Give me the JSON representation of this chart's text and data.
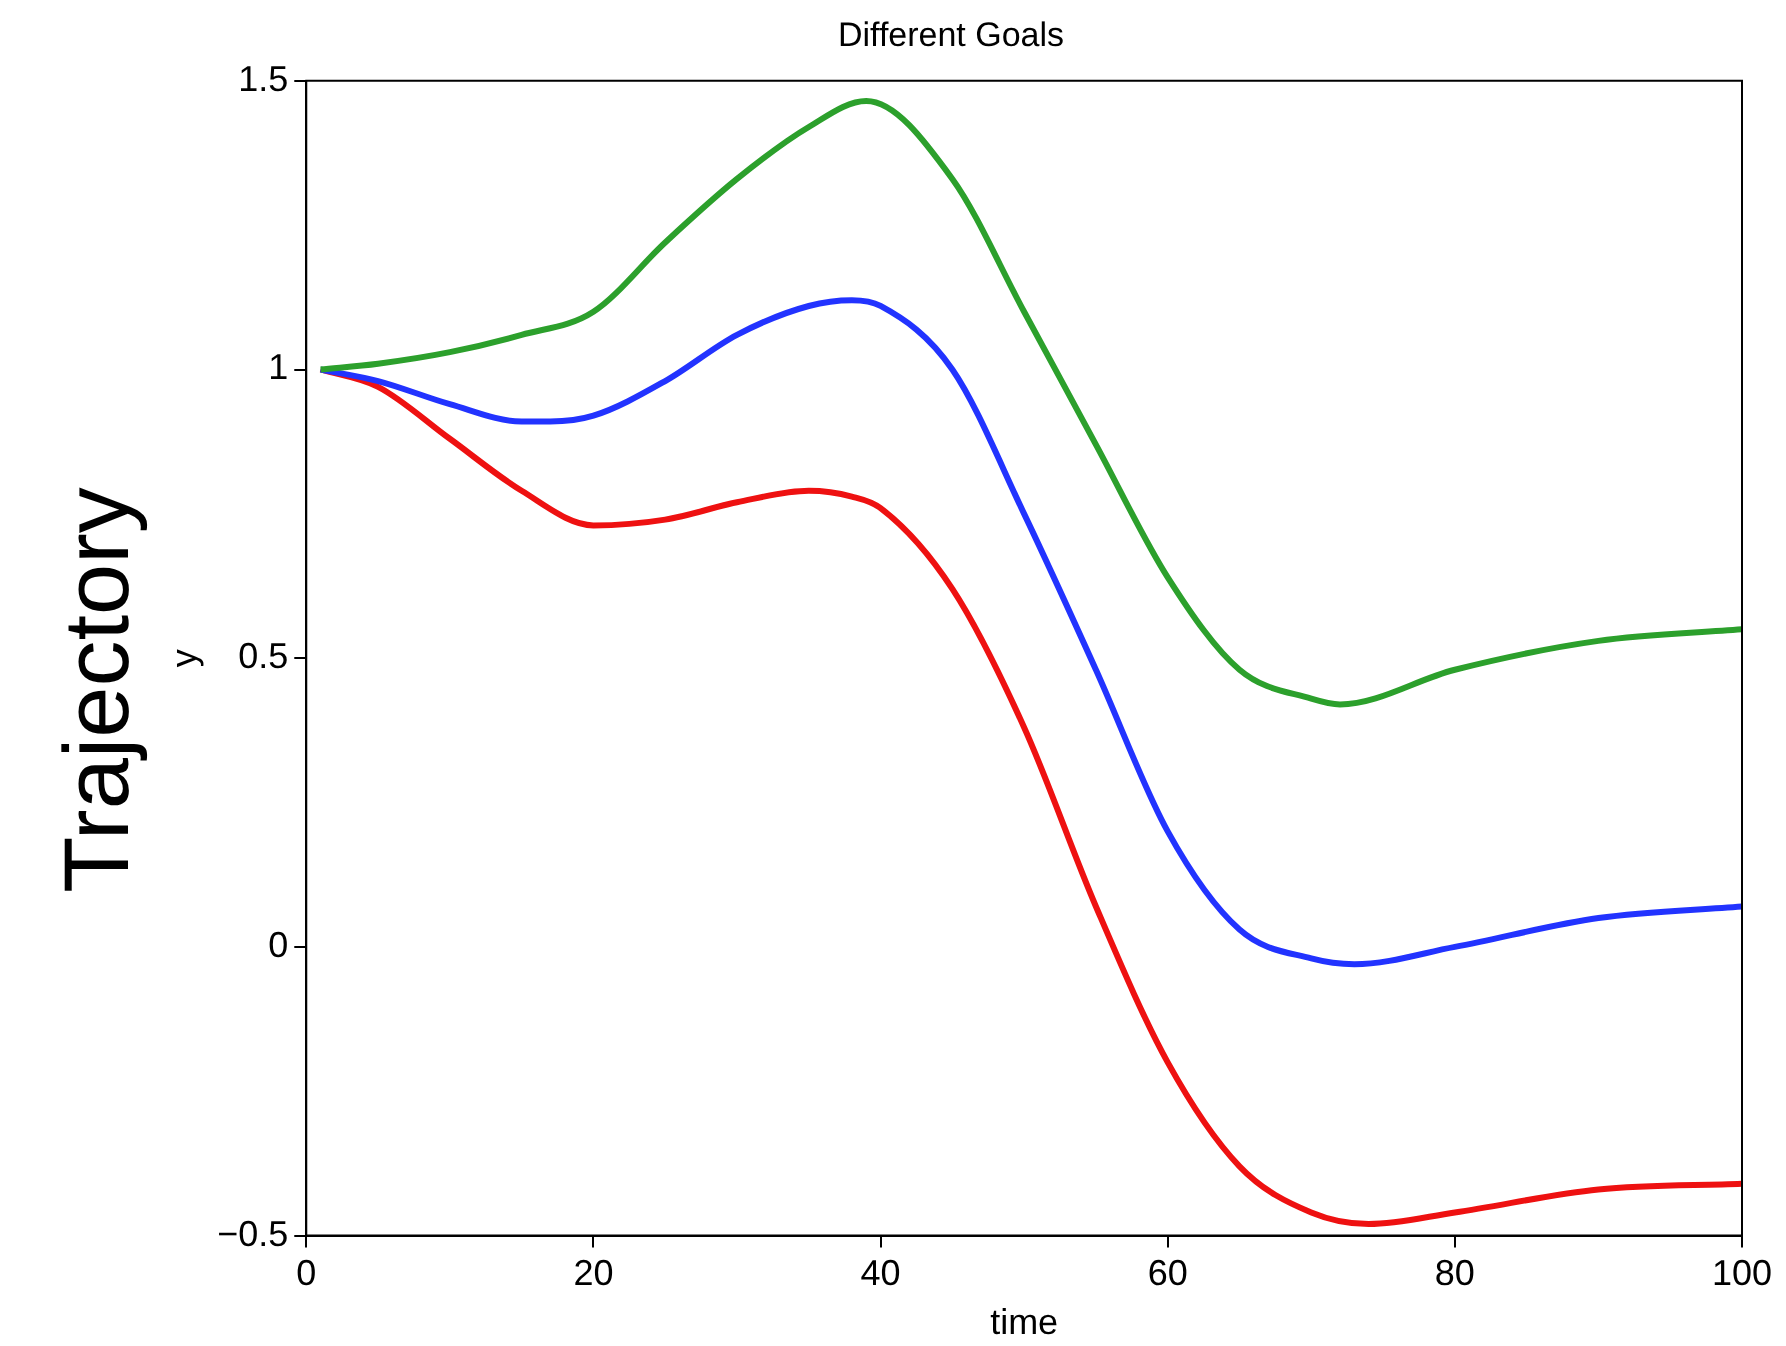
{
  "chart_data": {
    "type": "line",
    "title": "Different Goals",
    "xlabel": "time",
    "ylabel": "y",
    "annotations": [
      "Trajectory"
    ],
    "xlim": [
      0,
      100
    ],
    "xticks": [
      0,
      20,
      40,
      60,
      80,
      100
    ],
    "ylim": [
      -0.5,
      1.5
    ],
    "yticks": [
      -0.5,
      0,
      0.5,
      1,
      1.5
    ],
    "grid": false,
    "legend": false,
    "marker": "none",
    "line_style": "solid",
    "series": [
      {
        "color": "#2ca02c",
        "x": [
          1,
          5,
          10,
          15,
          20,
          25,
          30,
          35,
          39,
          45,
          50,
          55,
          60,
          65,
          70,
          72,
          80,
          90,
          100
        ],
        "values": [
          1,
          1.01,
          1.03,
          1.06,
          1.1,
          1.22,
          1.33,
          1.42,
          1.465,
          1.33,
          1.1,
          0.87,
          0.64,
          0.48,
          0.43,
          0.42,
          0.48,
          0.53,
          0.55
        ]
      },
      {
        "color": "#2233ff",
        "x": [
          1,
          5,
          10,
          15,
          17,
          20,
          25,
          30,
          35,
          38,
          40,
          45,
          50,
          55,
          60,
          65,
          70,
          73,
          80,
          90,
          100
        ],
        "values": [
          1,
          0.98,
          0.94,
          0.91,
          0.91,
          0.92,
          0.98,
          1.06,
          1.11,
          1.12,
          1.11,
          1.0,
          0.75,
          0.48,
          0.2,
          0.03,
          -0.02,
          -0.03,
          0.0,
          0.05,
          0.07
        ]
      },
      {
        "color": "#ee1111",
        "x": [
          1,
          5,
          10,
          15,
          20,
          25,
          30,
          35,
          38,
          40,
          45,
          50,
          55,
          60,
          65,
          70,
          74,
          80,
          90,
          100
        ],
        "values": [
          1,
          0.97,
          0.88,
          0.79,
          0.73,
          0.74,
          0.77,
          0.79,
          0.78,
          0.76,
          0.62,
          0.38,
          0.07,
          -0.2,
          -0.38,
          -0.46,
          -0.48,
          -0.46,
          -0.42,
          -0.41
        ]
      }
    ]
  }
}
